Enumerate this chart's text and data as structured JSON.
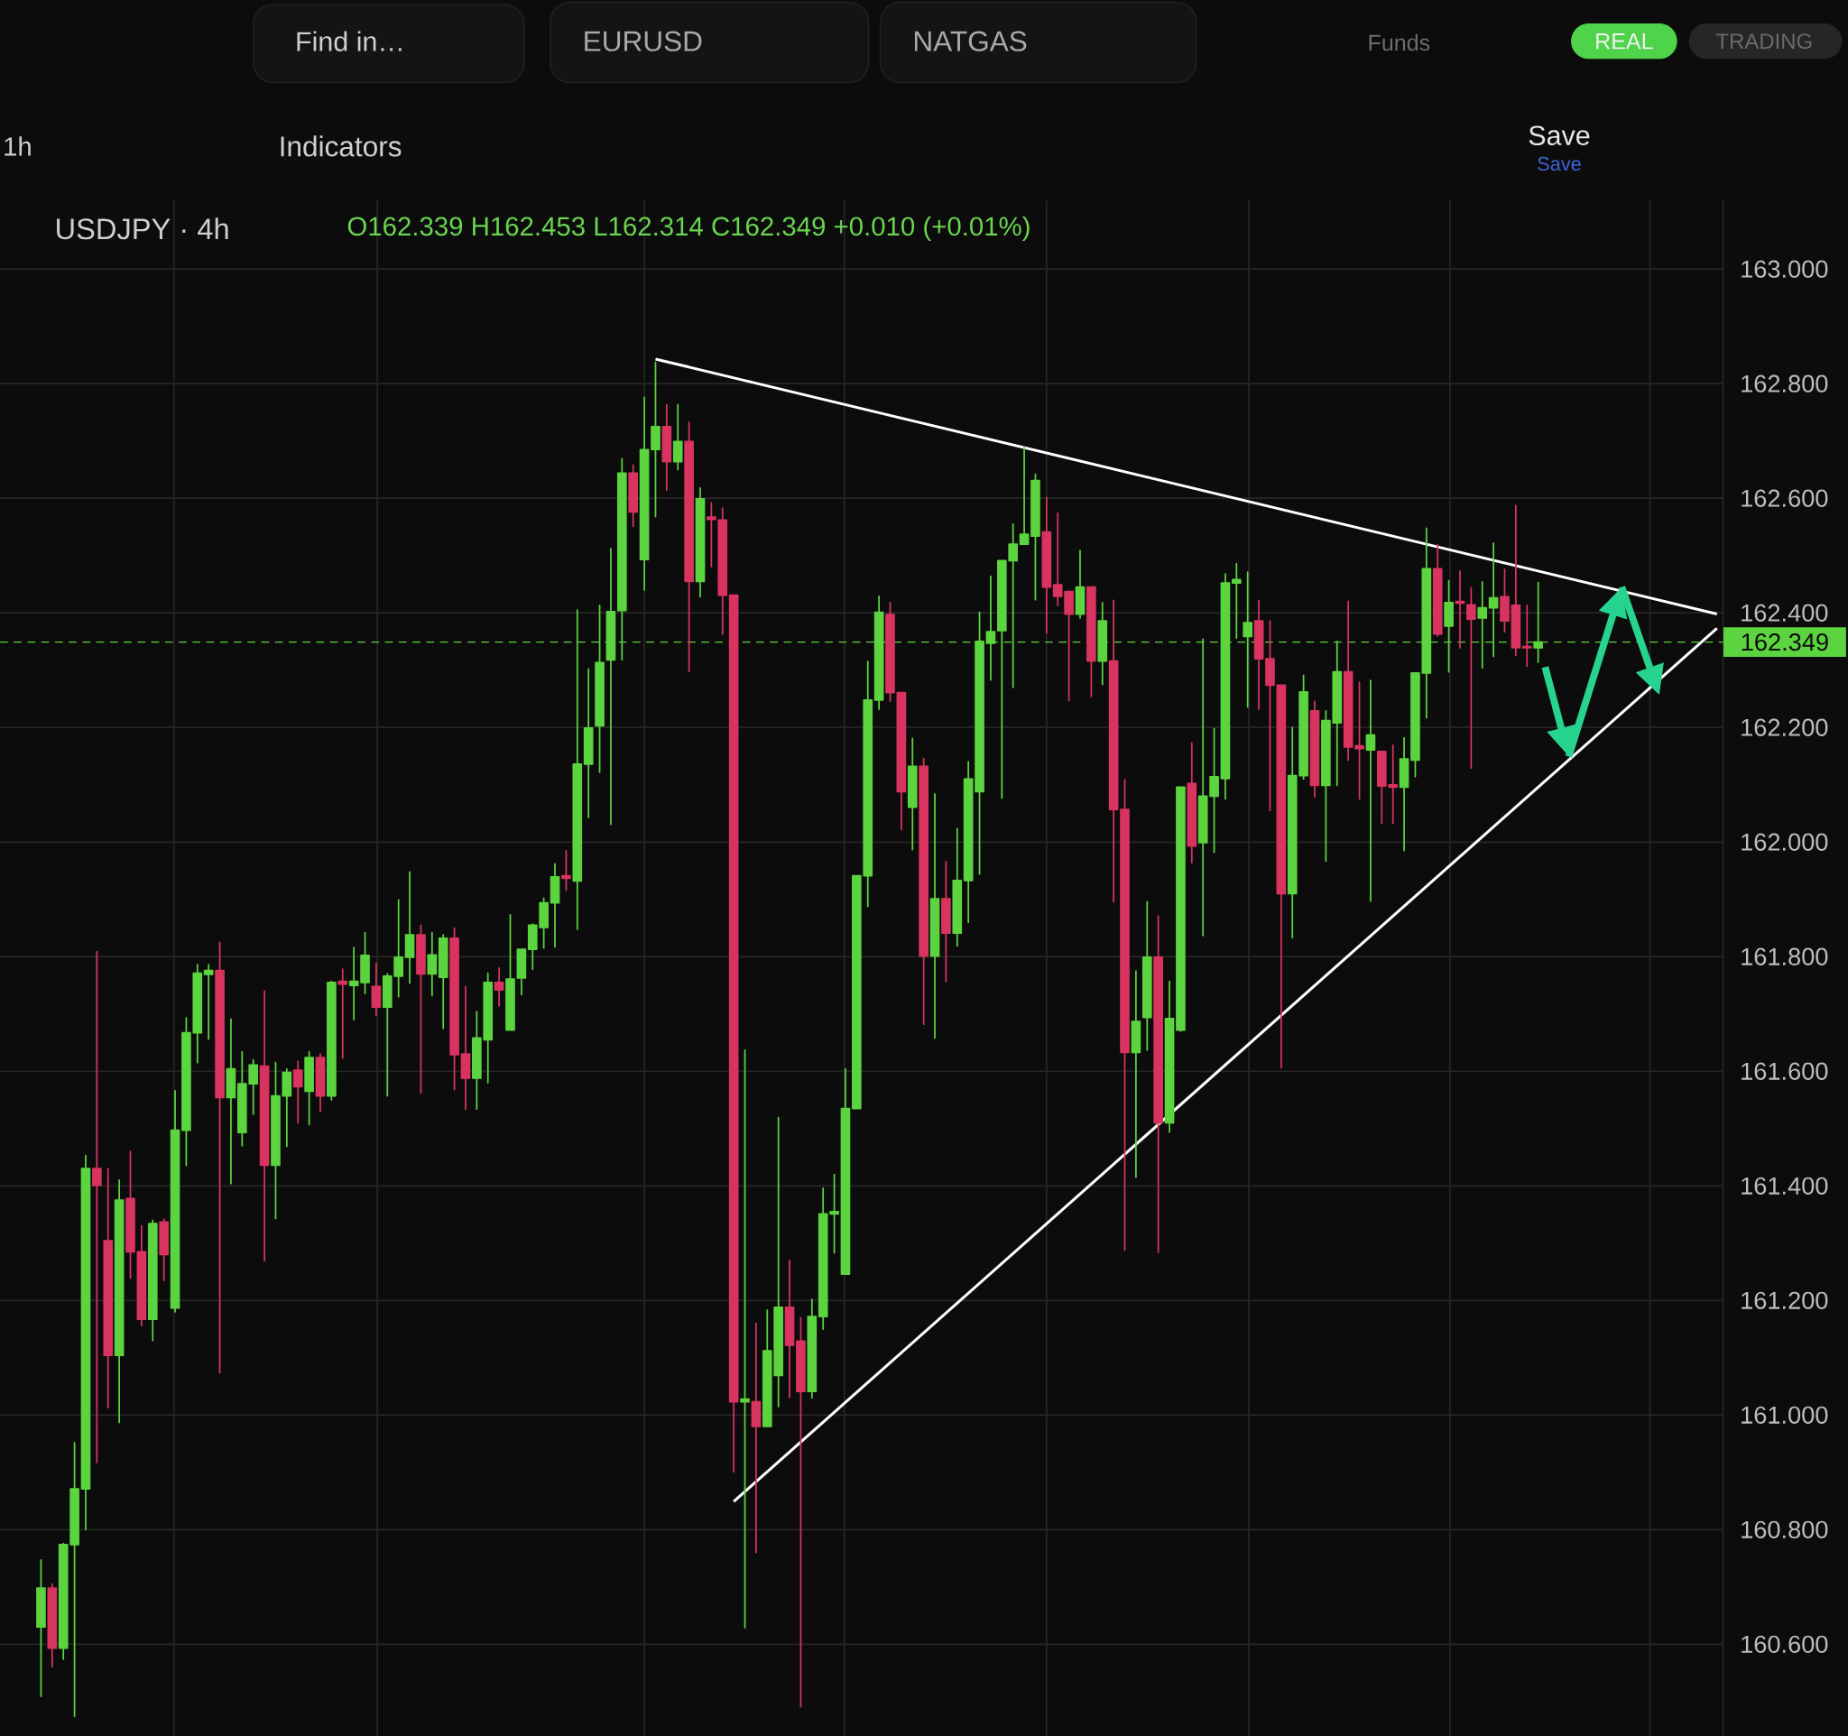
{
  "chart_data": {
    "type": "candlestick",
    "title": "USDJPY · 4h",
    "subtitle": "O162.339 H162.453 L162.314 C162.349 +0.010 (+0.01%)",
    "categories": [
      null,
      null,
      null,
      null,
      null,
      null,
      null,
      null,
      null,
      null,
      null,
      null,
      null,
      null,
      null,
      null,
      null,
      null,
      null,
      null,
      null,
      null,
      null,
      null,
      null,
      null,
      null,
      null,
      null,
      null,
      null,
      null,
      null,
      null,
      null,
      null,
      null,
      null,
      null,
      null,
      null,
      null,
      null,
      null,
      null,
      null,
      null,
      null,
      null,
      null,
      null,
      null,
      null,
      null,
      null,
      null,
      null,
      null,
      null,
      null,
      null,
      null,
      null,
      null,
      null,
      null,
      null,
      null,
      null,
      null,
      null,
      null,
      null,
      null,
      null,
      null,
      null,
      null,
      null,
      null,
      null,
      null,
      null,
      null,
      null,
      null,
      null,
      null,
      null,
      null,
      null,
      null,
      null,
      null,
      null,
      null,
      null,
      null,
      null,
      null,
      null,
      null,
      null,
      null,
      null,
      null,
      null,
      null,
      null,
      null,
      null,
      null,
      null,
      null,
      null,
      null,
      null,
      null,
      null,
      null,
      null,
      null,
      null,
      null,
      null,
      null,
      null,
      null,
      null,
      null,
      null,
      null,
      null,
      null,
      null,
      null,
      null,
      null,
      null,
      null,
      null,
      null,
      null,
      null,
      null,
      null,
      null,
      null,
      null,
      null,
      null
    ],
    "ohlc": [
      [
        160.63,
        160.747,
        160.509,
        160.698
      ],
      [
        160.698,
        160.705,
        160.561,
        160.593
      ],
      [
        160.593,
        160.776,
        160.574,
        160.774
      ],
      [
        160.774,
        160.952,
        160.474,
        160.871
      ],
      [
        160.871,
        161.453,
        160.8,
        161.43
      ],
      [
        161.43,
        161.809,
        160.917,
        161.401
      ],
      [
        161.304,
        161.43,
        161.013,
        161.104
      ],
      [
        161.104,
        161.41,
        160.987,
        161.375
      ],
      [
        161.378,
        161.46,
        161.239,
        161.285
      ],
      [
        161.285,
        161.33,
        161.156,
        161.167
      ],
      [
        161.167,
        161.34,
        161.13,
        161.334
      ],
      [
        161.337,
        161.342,
        161.235,
        161.28
      ],
      [
        161.187,
        161.566,
        161.18,
        161.497
      ],
      [
        161.497,
        161.693,
        161.436,
        161.667
      ],
      [
        161.667,
        161.786,
        161.615,
        161.771
      ],
      [
        161.769,
        161.786,
        161.656,
        161.776
      ],
      [
        161.776,
        161.825,
        161.074,
        161.554
      ],
      [
        161.554,
        161.691,
        161.404,
        161.604
      ],
      [
        161.493,
        161.634,
        161.47,
        161.578
      ],
      [
        161.578,
        161.62,
        161.525,
        161.611
      ],
      [
        161.609,
        161.74,
        161.269,
        161.436
      ],
      [
        161.436,
        161.615,
        161.343,
        161.557
      ],
      [
        161.557,
        161.604,
        161.469,
        161.598
      ],
      [
        161.602,
        161.617,
        161.51,
        161.573
      ],
      [
        161.565,
        161.634,
        161.507,
        161.624
      ],
      [
        161.624,
        161.63,
        161.53,
        161.557
      ],
      [
        161.557,
        161.757,
        161.55,
        161.755
      ],
      [
        161.757,
        161.778,
        161.623,
        161.752
      ],
      [
        161.75,
        161.816,
        161.69,
        161.757
      ],
      [
        161.755,
        161.842,
        161.736,
        161.802
      ],
      [
        161.748,
        161.788,
        161.698,
        161.712
      ],
      [
        161.712,
        161.77,
        161.557,
        161.766
      ],
      [
        161.766,
        161.899,
        161.73,
        161.799
      ],
      [
        161.799,
        161.948,
        161.754,
        161.838
      ],
      [
        161.838,
        161.855,
        161.562,
        161.77
      ],
      [
        161.77,
        161.842,
        161.732,
        161.803
      ],
      [
        161.764,
        161.838,
        161.675,
        161.832
      ],
      [
        161.832,
        161.85,
        161.568,
        161.629
      ],
      [
        161.63,
        161.748,
        161.534,
        161.588
      ],
      [
        161.588,
        161.704,
        161.534,
        161.658
      ],
      [
        161.655,
        161.771,
        161.58,
        161.755
      ],
      [
        161.755,
        161.78,
        161.714,
        161.742
      ],
      [
        161.672,
        161.873,
        161.672,
        161.761
      ],
      [
        161.763,
        161.813,
        161.734,
        161.813
      ],
      [
        161.813,
        161.857,
        161.778,
        161.855
      ],
      [
        161.851,
        161.902,
        161.815,
        161.894
      ],
      [
        161.894,
        161.962,
        161.817,
        161.939
      ],
      [
        161.941,
        161.985,
        161.916,
        161.937
      ],
      [
        161.932,
        162.405,
        161.848,
        162.136
      ],
      [
        162.136,
        162.302,
        162.043,
        162.199
      ],
      [
        162.203,
        162.413,
        162.122,
        162.313
      ],
      [
        162.318,
        162.512,
        162.031,
        162.402
      ],
      [
        162.404,
        162.669,
        162.318,
        162.644
      ],
      [
        162.644,
        162.658,
        162.551,
        162.576
      ],
      [
        162.493,
        162.776,
        162.44,
        162.685
      ],
      [
        162.685,
        162.837,
        162.568,
        162.725
      ],
      [
        162.725,
        162.763,
        162.614,
        162.664
      ],
      [
        162.664,
        162.763,
        162.65,
        162.699
      ],
      [
        162.699,
        162.733,
        162.298,
        162.455
      ],
      [
        162.455,
        162.618,
        162.428,
        162.599
      ],
      [
        162.567,
        162.592,
        162.481,
        162.563
      ],
      [
        162.562,
        162.583,
        162.363,
        162.431
      ],
      [
        162.431,
        162.431,
        160.901,
        161.023
      ],
      [
        161.023,
        161.637,
        160.629,
        161.028
      ],
      [
        161.023,
        161.16,
        160.76,
        160.98
      ],
      [
        160.98,
        161.183,
        160.98,
        161.112
      ],
      [
        161.069,
        161.519,
        161.015,
        161.188
      ],
      [
        161.188,
        161.27,
        161.031,
        161.122
      ],
      [
        161.129,
        161.17,
        160.491,
        161.041
      ],
      [
        161.041,
        161.202,
        161.03,
        161.172
      ],
      [
        161.172,
        161.396,
        161.15,
        161.351
      ],
      [
        161.351,
        161.42,
        161.283,
        161.355
      ],
      [
        161.246,
        161.604,
        161.246,
        161.535
      ],
      [
        161.535,
        161.941,
        161.535,
        161.941
      ],
      [
        161.941,
        162.315,
        161.888,
        162.248
      ],
      [
        162.248,
        162.429,
        162.232,
        162.401
      ],
      [
        162.397,
        162.418,
        162.246,
        162.261
      ],
      [
        162.261,
        162.261,
        162.022,
        162.088
      ],
      [
        162.061,
        162.181,
        161.987,
        162.132
      ],
      [
        162.132,
        162.146,
        161.682,
        161.801
      ],
      [
        161.801,
        162.084,
        161.658,
        161.901
      ],
      [
        161.901,
        161.966,
        161.757,
        161.841
      ],
      [
        161.841,
        162.024,
        161.819,
        161.933
      ],
      [
        161.933,
        162.14,
        161.86,
        162.11
      ],
      [
        162.088,
        162.401,
        161.944,
        162.35
      ],
      [
        162.347,
        162.464,
        162.283,
        162.367
      ],
      [
        162.369,
        162.491,
        162.077,
        162.491
      ],
      [
        162.491,
        162.555,
        162.27,
        162.52
      ],
      [
        162.52,
        162.69,
        162.52,
        162.537
      ],
      [
        162.534,
        162.642,
        162.423,
        162.631
      ],
      [
        162.541,
        162.601,
        162.365,
        162.445
      ],
      [
        162.449,
        162.574,
        162.413,
        162.429
      ],
      [
        162.437,
        162.437,
        162.247,
        162.398
      ],
      [
        162.398,
        162.509,
        162.391,
        162.445
      ],
      [
        162.445,
        162.445,
        162.254,
        162.316
      ],
      [
        162.316,
        162.418,
        162.275,
        162.386
      ],
      [
        162.316,
        162.422,
        161.896,
        162.057
      ],
      [
        162.057,
        162.109,
        161.288,
        161.633
      ],
      [
        161.633,
        161.775,
        161.415,
        161.687
      ],
      [
        161.694,
        161.896,
        161.637,
        161.799
      ],
      [
        161.799,
        161.871,
        161.284,
        161.51
      ],
      [
        161.51,
        161.757,
        161.494,
        161.692
      ],
      [
        161.672,
        162.096,
        161.67,
        162.096
      ],
      [
        162.102,
        162.173,
        161.964,
        161.993
      ],
      [
        161.999,
        162.354,
        161.837,
        162.08
      ],
      [
        162.08,
        162.198,
        161.982,
        162.114
      ],
      [
        162.111,
        162.468,
        162.075,
        162.452
      ],
      [
        162.452,
        162.486,
        162.356,
        162.458
      ],
      [
        162.359,
        162.471,
        162.236,
        162.383
      ],
      [
        162.386,
        162.422,
        162.232,
        162.32
      ],
      [
        162.32,
        162.386,
        162.055,
        162.274
      ],
      [
        162.274,
        162.274,
        161.606,
        161.91
      ],
      [
        161.91,
        162.2,
        161.833,
        162.116
      ],
      [
        162.116,
        162.291,
        162.11,
        162.262
      ],
      [
        162.229,
        162.246,
        162.079,
        162.099
      ],
      [
        162.099,
        162.229,
        161.967,
        162.212
      ],
      [
        162.208,
        162.35,
        162.099,
        162.297
      ],
      [
        162.297,
        162.42,
        162.143,
        162.166
      ],
      [
        162.168,
        162.279,
        162.075,
        162.163
      ],
      [
        162.161,
        162.282,
        161.897,
        162.187
      ],
      [
        162.158,
        162.158,
        162.033,
        162.098
      ],
      [
        162.1,
        162.169,
        162.033,
        162.096
      ],
      [
        162.096,
        162.182,
        161.985,
        162.145
      ],
      [
        162.143,
        162.295,
        162.114,
        162.295
      ],
      [
        162.295,
        162.548,
        162.217,
        162.477
      ],
      [
        162.477,
        162.519,
        162.36,
        162.363
      ],
      [
        162.377,
        162.456,
        162.297,
        162.418
      ],
      [
        162.42,
        162.473,
        162.339,
        162.417
      ],
      [
        162.414,
        162.444,
        162.129,
        162.389
      ],
      [
        162.391,
        162.454,
        162.304,
        162.409
      ],
      [
        162.409,
        162.522,
        162.324,
        162.426
      ],
      [
        162.428,
        162.476,
        162.367,
        162.386
      ],
      [
        162.413,
        162.587,
        162.326,
        162.339
      ],
      [
        162.341,
        162.413,
        162.307,
        162.339
      ],
      [
        162.339,
        162.453,
        162.314,
        162.349
      ],
      null,
      null,
      null,
      null,
      null,
      null,
      null,
      null,
      null,
      null,
      null,
      null,
      null,
      null,
      null,
      null
    ],
    "colors": [
      "#5cd43f",
      "#d93360",
      "#5cd43f",
      "#5cd43f",
      "#5cd43f",
      "#d93360",
      "#d93360",
      "#5cd43f",
      "#d93360",
      "#d93360",
      "#5cd43f",
      "#d93360",
      "#5cd43f",
      "#5cd43f",
      "#5cd43f",
      "#5cd43f",
      "#d93360",
      "#5cd43f",
      "#5cd43f",
      "#5cd43f",
      "#d93360",
      "#5cd43f",
      "#5cd43f",
      "#d93360",
      "#5cd43f",
      "#d93360",
      "#5cd43f",
      "#d93360",
      "#5cd43f",
      "#5cd43f",
      "#d93360",
      "#5cd43f",
      "#5cd43f",
      "#5cd43f",
      "#d93360",
      "#5cd43f",
      "#5cd43f",
      "#d93360",
      "#d93360",
      "#5cd43f",
      "#5cd43f",
      "#d93360",
      "#5cd43f",
      "#5cd43f",
      "#5cd43f",
      "#5cd43f",
      "#5cd43f",
      "#d93360",
      "#5cd43f",
      "#5cd43f",
      "#5cd43f",
      "#5cd43f",
      "#5cd43f",
      "#d93360",
      "#5cd43f",
      "#5cd43f",
      "#d93360",
      "#5cd43f",
      "#d93360",
      "#5cd43f",
      "#d93360",
      "#d93360",
      "#d93360",
      "#5cd43f",
      "#d93360",
      "#5cd43f",
      "#5cd43f",
      "#d93360",
      "#d93360",
      "#5cd43f",
      "#5cd43f",
      "#5cd43f",
      "#5cd43f",
      "#5cd43f",
      "#5cd43f",
      "#5cd43f",
      "#d93360",
      "#d93360",
      "#5cd43f",
      "#d93360",
      "#5cd43f",
      "#d93360",
      "#5cd43f",
      "#5cd43f",
      "#5cd43f",
      "#5cd43f",
      "#5cd43f",
      "#5cd43f",
      "#5cd43f",
      "#5cd43f",
      "#d93360",
      "#d93360",
      "#d93360",
      "#5cd43f",
      "#d93360",
      "#5cd43f",
      "#d93360",
      "#d93360",
      "#5cd43f",
      "#5cd43f",
      "#d93360",
      "#5cd43f",
      "#5cd43f",
      "#d93360",
      "#5cd43f",
      "#5cd43f",
      "#5cd43f",
      "#5cd43f",
      "#5cd43f",
      "#d93360",
      "#d93360",
      "#d93360",
      "#5cd43f",
      "#5cd43f",
      "#d93360",
      "#5cd43f",
      "#5cd43f",
      "#d93360",
      "#d93360",
      "#5cd43f",
      "#d93360",
      "#d93360",
      "#5cd43f",
      "#5cd43f",
      "#5cd43f",
      "#d93360",
      "#5cd43f",
      "#d93360",
      "#d93360",
      "#5cd43f",
      "#5cd43f",
      "#d93360",
      "#d93360",
      "#d93360",
      "#5cd43f",
      null,
      null,
      null,
      null,
      null,
      null,
      null,
      null,
      null,
      null,
      null,
      null,
      null,
      null,
      null,
      null
    ],
    "series": [
      {
        "type": "line",
        "color": "#ffffff",
        "values": [
          null,
          null,
          null,
          null,
          null,
          null,
          null,
          null,
          null,
          null,
          null,
          null,
          null,
          null,
          null,
          null,
          null,
          null,
          null,
          null,
          null,
          null,
          null,
          null,
          null,
          null,
          null,
          null,
          null,
          null,
          null,
          null,
          null,
          null,
          null,
          null,
          null,
          null,
          null,
          null,
          null,
          null,
          null,
          null,
          null,
          null,
          null,
          null,
          null,
          null,
          null,
          null,
          null,
          null,
          null,
          162.843,
          null,
          null,
          null,
          null,
          null,
          null,
          null,
          null,
          null,
          null,
          null,
          null,
          null,
          null,
          null,
          null,
          null,
          null,
          null,
          null,
          null,
          null,
          null,
          null,
          null,
          null,
          null,
          null,
          null,
          null,
          null,
          null,
          null,
          null,
          null,
          null,
          null,
          null,
          null,
          null,
          null,
          null,
          null,
          null,
          null,
          null,
          null,
          null,
          null,
          null,
          null,
          null,
          null,
          null,
          null,
          null,
          null,
          null,
          null,
          null,
          null,
          null,
          null,
          null,
          null,
          null,
          null,
          null,
          null,
          null,
          null,
          null,
          null,
          null,
          null,
          null,
          null,
          null,
          null,
          null,
          null,
          null,
          null,
          null,
          null,
          null,
          null,
          null,
          null,
          null,
          null,
          null,
          null,
          null,
          162.398
        ]
      },
      {
        "type": "line",
        "color": "#ffffff",
        "values": [
          null,
          null,
          null,
          null,
          null,
          null,
          null,
          null,
          null,
          null,
          null,
          null,
          null,
          null,
          null,
          null,
          null,
          null,
          null,
          null,
          null,
          null,
          null,
          null,
          null,
          null,
          null,
          null,
          null,
          null,
          null,
          null,
          null,
          null,
          null,
          null,
          null,
          null,
          null,
          null,
          null,
          null,
          null,
          null,
          null,
          null,
          null,
          null,
          null,
          null,
          null,
          null,
          null,
          null,
          null,
          null,
          null,
          null,
          null,
          null,
          null,
          null,
          160.849,
          null,
          null,
          null,
          null,
          null,
          null,
          null,
          null,
          null,
          null,
          null,
          null,
          null,
          null,
          null,
          null,
          null,
          null,
          null,
          null,
          null,
          null,
          null,
          null,
          null,
          null,
          null,
          null,
          null,
          null,
          null,
          null,
          null,
          null,
          null,
          null,
          null,
          null,
          null,
          null,
          null,
          null,
          null,
          null,
          null,
          null,
          null,
          null,
          null,
          null,
          null,
          null,
          null,
          null,
          null,
          null,
          null,
          null,
          null,
          null,
          null,
          null,
          null,
          null,
          null,
          null,
          null,
          null,
          null,
          null,
          null,
          null,
          null,
          null,
          null,
          null,
          null,
          null,
          null,
          null,
          null,
          null,
          null,
          null,
          null,
          null,
          null,
          162.373
        ]
      }
    ],
    "ylim": [
      160.44,
      163.12
    ],
    "yticks": [
      {
        "value": 160.6,
        "label": "160.600"
      },
      {
        "value": 160.8,
        "label": "160.800"
      },
      {
        "value": 161,
        "label": "161.000"
      },
      {
        "value": 161.2,
        "label": "161.200"
      },
      {
        "value": 161.4,
        "label": "161.400"
      },
      {
        "value": 161.6,
        "label": "161.600"
      },
      {
        "value": 161.8,
        "label": "161.800"
      },
      {
        "value": 162,
        "label": "162.000"
      },
      {
        "value": 162.2,
        "label": "162.200"
      },
      {
        "value": 162.4,
        "label": "162.400"
      },
      {
        "value": 162.6,
        "label": "162.600"
      },
      {
        "value": 162.8,
        "label": "162.800"
      },
      {
        "value": 163,
        "label": "163.000"
      }
    ],
    "grid": true,
    "ref_lines": [
      {
        "axis": "y",
        "value": 162.349,
        "label": "162.349",
        "color": "#5cd43f",
        "line_style": "dashed"
      }
    ],
    "annotations": [
      "Find in…",
      "EURUSD",
      "NATGAS",
      "Funds",
      "REAL",
      "TRADING",
      "1h",
      "Indicators",
      "Save",
      "Save"
    ]
  }
}
